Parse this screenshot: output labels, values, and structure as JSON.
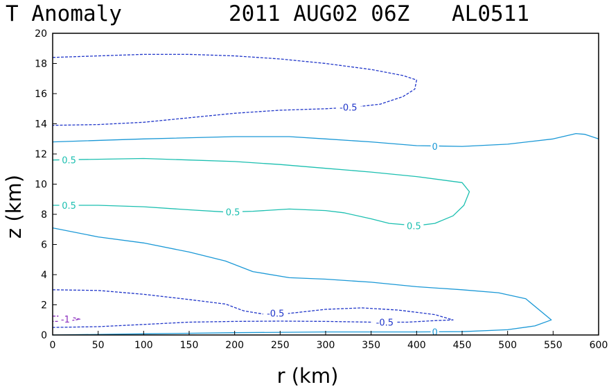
{
  "chart_data": {
    "type": "contour",
    "title": {
      "left": "T Anomaly",
      "center": "2011 AUG02 06Z",
      "right": "AL0511"
    },
    "xlabel": "r (km)",
    "ylabel": "z (km)",
    "xlim": [
      0,
      600
    ],
    "ylim": [
      0,
      20
    ],
    "xticks": [
      "0",
      "50",
      "100",
      "150",
      "200",
      "250",
      "300",
      "350",
      "400",
      "450",
      "500",
      "550",
      "600"
    ],
    "yticks": [
      "0",
      "2",
      "4",
      "6",
      "8",
      "10",
      "12",
      "14",
      "16",
      "18",
      "20"
    ],
    "grid": false,
    "colors": {
      "neg_half": "#1f35c9",
      "zero": "#1a98d6",
      "pos_half": "#1bbfb0",
      "neg_one": "#8a2bbe",
      "axis": "#000000"
    },
    "contours": [
      {
        "level": -0.5,
        "style": "dashed",
        "color_key": "neg_half",
        "points": [
          [
            0,
            18.4
          ],
          [
            50,
            18.5
          ],
          [
            100,
            18.6
          ],
          [
            150,
            18.6
          ],
          [
            200,
            18.5
          ],
          [
            250,
            18.3
          ],
          [
            300,
            18.0
          ],
          [
            350,
            17.6
          ],
          [
            385,
            17.2
          ],
          [
            400,
            16.9
          ],
          [
            398,
            16.3
          ],
          [
            385,
            15.8
          ],
          [
            360,
            15.3
          ],
          [
            330,
            15.1
          ],
          [
            300,
            15.0
          ],
          [
            250,
            14.9
          ],
          [
            200,
            14.7
          ],
          [
            150,
            14.4
          ],
          [
            100,
            14.1
          ],
          [
            50,
            13.95
          ],
          [
            0,
            13.9
          ]
        ],
        "labels": [
          {
            "text": "-0.5",
            "x": 325,
            "y": 15.1
          }
        ]
      },
      {
        "level": 0,
        "style": "solid",
        "color_key": "zero",
        "points": [
          [
            0,
            12.8
          ],
          [
            100,
            13.0
          ],
          [
            200,
            13.15
          ],
          [
            260,
            13.15
          ],
          [
            300,
            13.0
          ],
          [
            350,
            12.8
          ],
          [
            400,
            12.55
          ],
          [
            450,
            12.5
          ],
          [
            500,
            12.65
          ],
          [
            550,
            13.0
          ],
          [
            575,
            13.35
          ],
          [
            585,
            13.3
          ],
          [
            600,
            13.0
          ]
        ],
        "labels": [
          {
            "text": "0",
            "x": 420,
            "y": 12.5
          }
        ]
      },
      {
        "level": 0.5,
        "style": "solid",
        "color_key": "pos_half",
        "points": [
          [
            0,
            11.6
          ],
          [
            50,
            11.65
          ],
          [
            100,
            11.7
          ],
          [
            150,
            11.6
          ],
          [
            200,
            11.5
          ],
          [
            250,
            11.3
          ],
          [
            300,
            11.05
          ],
          [
            350,
            10.8
          ],
          [
            400,
            10.5
          ],
          [
            450,
            10.1
          ],
          [
            458,
            9.5
          ],
          [
            452,
            8.6
          ],
          [
            440,
            7.9
          ],
          [
            420,
            7.4
          ],
          [
            400,
            7.25
          ],
          [
            370,
            7.4
          ],
          [
            350,
            7.7
          ],
          [
            320,
            8.1
          ],
          [
            300,
            8.25
          ],
          [
            260,
            8.35
          ],
          [
            220,
            8.2
          ],
          [
            190,
            8.15
          ],
          [
            150,
            8.3
          ],
          [
            100,
            8.5
          ],
          [
            50,
            8.6
          ],
          [
            0,
            8.6
          ]
        ],
        "labels": [
          {
            "text": "0.5",
            "x": 18,
            "y": 11.6
          },
          {
            "text": "0.5",
            "x": 18,
            "y": 8.6
          },
          {
            "text": "0.5",
            "x": 198,
            "y": 8.15
          },
          {
            "text": "0.5",
            "x": 397,
            "y": 7.25
          }
        ]
      },
      {
        "level": 0,
        "style": "solid",
        "color_key": "zero",
        "points": [
          [
            0,
            7.1
          ],
          [
            50,
            6.5
          ],
          [
            100,
            6.1
          ],
          [
            150,
            5.5
          ],
          [
            190,
            4.9
          ],
          [
            220,
            4.2
          ],
          [
            260,
            3.8
          ],
          [
            300,
            3.7
          ],
          [
            350,
            3.5
          ],
          [
            400,
            3.2
          ],
          [
            450,
            3.0
          ],
          [
            490,
            2.8
          ],
          [
            520,
            2.4
          ],
          [
            548,
            1.0
          ],
          [
            530,
            0.6
          ],
          [
            500,
            0.35
          ],
          [
            450,
            0.22
          ],
          [
            400,
            0.2
          ],
          [
            300,
            0.2
          ],
          [
            200,
            0.15
          ],
          [
            100,
            0.08
          ],
          [
            0,
            0.0
          ]
        ],
        "labels": [
          {
            "text": "0",
            "x": 420,
            "y": 0.2
          }
        ]
      },
      {
        "level": -0.5,
        "style": "dashed",
        "color_key": "neg_half",
        "points": [
          [
            0,
            3.0
          ],
          [
            50,
            2.95
          ],
          [
            100,
            2.7
          ],
          [
            150,
            2.35
          ],
          [
            190,
            2.05
          ],
          [
            210,
            1.6
          ],
          [
            240,
            1.3
          ],
          [
            270,
            1.5
          ],
          [
            300,
            1.7
          ],
          [
            340,
            1.8
          ],
          [
            380,
            1.65
          ],
          [
            420,
            1.35
          ],
          [
            440,
            1.0
          ],
          [
            420,
            0.95
          ],
          [
            390,
            0.85
          ],
          [
            350,
            0.85
          ],
          [
            300,
            0.9
          ],
          [
            250,
            0.92
          ],
          [
            200,
            0.9
          ],
          [
            150,
            0.85
          ],
          [
            100,
            0.7
          ],
          [
            50,
            0.55
          ],
          [
            0,
            0.5
          ]
        ],
        "labels": [
          {
            "text": "-0.5",
            "x": 245,
            "y": 1.45
          },
          {
            "text": "-0.5",
            "x": 365,
            "y": 0.85
          }
        ]
      },
      {
        "level": -1,
        "style": "dashed",
        "color_key": "neg_one",
        "points": [
          [
            0,
            1.25
          ],
          [
            15,
            1.25
          ],
          [
            30,
            1.05
          ],
          [
            15,
            0.9
          ],
          [
            0,
            0.9
          ]
        ],
        "labels": [
          {
            "text": "-1",
            "x": 14,
            "y": 1.05
          }
        ]
      }
    ]
  }
}
